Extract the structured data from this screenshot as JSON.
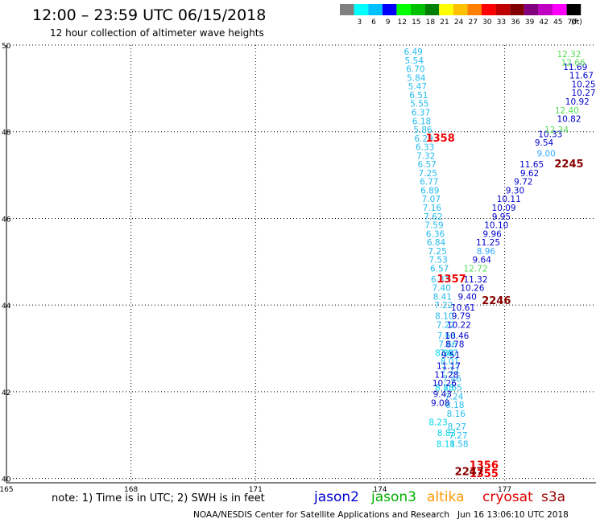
{
  "header": {
    "title": "12:00 – 23:59 UTC 06/15/2018",
    "subtitle": "12 hour collection of altimeter wave heights"
  },
  "color_scale": {
    "unit": "(ft)",
    "bins": [
      {
        "label": "",
        "color": "#808080"
      },
      {
        "label": "3",
        "color": "#00ffff"
      },
      {
        "label": "6",
        "color": "#00c0ff"
      },
      {
        "label": "9",
        "color": "#0000ff"
      },
      {
        "label": "12",
        "color": "#00ff00"
      },
      {
        "label": "15",
        "color": "#00c000"
      },
      {
        "label": "18",
        "color": "#008000"
      },
      {
        "label": "21",
        "color": "#ffff00"
      },
      {
        "label": "24",
        "color": "#ffc000"
      },
      {
        "label": "27",
        "color": "#ff8000"
      },
      {
        "label": "30",
        "color": "#ff0000"
      },
      {
        "label": "33",
        "color": "#c00000"
      },
      {
        "label": "36",
        "color": "#800000"
      },
      {
        "label": "39",
        "color": "#800080"
      },
      {
        "label": "42",
        "color": "#c000c0"
      },
      {
        "label": "45",
        "color": "#ff00ff"
      },
      {
        "label": "70",
        "color": "#000000"
      }
    ]
  },
  "note": "note: 1) Time is in UTC; 2) SWH is in feet",
  "legend": [
    {
      "label": "jason2",
      "color": "#0000cc"
    },
    {
      "label": "jason3",
      "color": "#00b000"
    },
    {
      "label": "altika",
      "color": "#ff9900"
    },
    {
      "label": "cryosat",
      "color": "#dd0000"
    },
    {
      "label": "s3a",
      "color": "#990000"
    }
  ],
  "footer": "NOAA/NESDIS Center for Satellite Applications and Research   Jun 16 13:06:10 UTC 2018",
  "chart_data": {
    "type": "scatter",
    "x_ticks": [
      "165",
      "168",
      "171",
      "174",
      "177"
    ],
    "y_ticks": [
      "40",
      "42",
      "44",
      "46",
      "48",
      "50"
    ],
    "xlim": [
      165,
      179.2
    ],
    "ylim": [
      39.9,
      50
    ],
    "grid": true,
    "tracks": [
      {
        "color": "#22bbee",
        "points": [
          {
            "x": 174.8,
            "y": 49.85,
            "t": "6.49"
          },
          {
            "x": 174.82,
            "y": 49.65,
            "t": "5.54"
          },
          {
            "x": 174.85,
            "y": 49.45,
            "t": "6.70"
          },
          {
            "x": 174.87,
            "y": 49.25,
            "t": "5.84"
          },
          {
            "x": 174.9,
            "y": 49.05,
            "t": "5.47"
          },
          {
            "x": 174.93,
            "y": 48.85,
            "t": "6.51"
          },
          {
            "x": 174.95,
            "y": 48.65,
            "t": "5.55"
          },
          {
            "x": 174.98,
            "y": 48.45,
            "t": "6.37"
          },
          {
            "x": 175.0,
            "y": 48.25,
            "t": "6.18"
          },
          {
            "x": 175.03,
            "y": 48.05,
            "t": "5.86"
          },
          {
            "x": 175.05,
            "y": 47.85,
            "t": "6.29"
          },
          {
            "x": 175.08,
            "y": 47.65,
            "t": "6.33"
          },
          {
            "x": 175.1,
            "y": 47.45,
            "t": "7.32"
          },
          {
            "x": 175.13,
            "y": 47.25,
            "t": "6.57"
          },
          {
            "x": 175.15,
            "y": 47.05,
            "t": "7.25"
          },
          {
            "x": 175.18,
            "y": 46.85,
            "t": "6.77"
          },
          {
            "x": 175.2,
            "y": 46.65,
            "t": "6.89"
          },
          {
            "x": 175.23,
            "y": 46.45,
            "t": "7.07"
          },
          {
            "x": 175.25,
            "y": 46.25,
            "t": "7.16"
          },
          {
            "x": 175.28,
            "y": 46.05,
            "t": "7.62"
          },
          {
            "x": 175.3,
            "y": 45.85,
            "t": "7.59"
          },
          {
            "x": 175.33,
            "y": 45.65,
            "t": "6.36"
          },
          {
            "x": 175.35,
            "y": 45.45,
            "t": "6.84"
          },
          {
            "x": 175.38,
            "y": 45.25,
            "t": "7.25"
          },
          {
            "x": 175.4,
            "y": 45.05,
            "t": "7.53"
          },
          {
            "x": 175.43,
            "y": 44.85,
            "t": "6.57"
          },
          {
            "x": 175.45,
            "y": 44.6,
            "t": "6.33"
          },
          {
            "x": 175.48,
            "y": 44.4,
            "t": "7.40"
          },
          {
            "x": 175.5,
            "y": 44.2,
            "t": "8.41"
          },
          {
            "x": 175.53,
            "y": 44.0,
            "t": "7.22"
          },
          {
            "x": 175.55,
            "y": 43.75,
            "t": "8.10"
          },
          {
            "x": 175.58,
            "y": 43.55,
            "t": "7.22"
          },
          {
            "x": 175.6,
            "y": 43.3,
            "t": "7.68"
          },
          {
            "x": 175.63,
            "y": 43.1,
            "t": "7.66"
          },
          {
            "x": 175.65,
            "y": 42.9,
            "t": "7.67"
          },
          {
            "x": 175.68,
            "y": 42.7,
            "t": "8.01"
          },
          {
            "x": 175.7,
            "y": 42.5,
            "t": "7.11"
          },
          {
            "x": 175.73,
            "y": 42.3,
            "t": "7.46"
          },
          {
            "x": 175.75,
            "y": 42.1,
            "t": "7.65"
          },
          {
            "x": 175.78,
            "y": 41.9,
            "t": "7.24"
          },
          {
            "x": 175.8,
            "y": 41.7,
            "t": "8.18"
          },
          {
            "x": 175.83,
            "y": 41.5,
            "t": "8.16"
          },
          {
            "x": 175.85,
            "y": 41.2,
            "t": "8.27"
          },
          {
            "x": 175.88,
            "y": 41.0,
            "t": "7.27"
          },
          {
            "x": 175.9,
            "y": 40.8,
            "t": "8.58"
          }
        ]
      },
      {
        "color": "#00d8e8",
        "points": [
          {
            "x": 175.55,
            "y": 42.9,
            "t": "8.88"
          },
          {
            "x": 175.55,
            "y": 42.1,
            "t": "8.88"
          },
          {
            "x": 175.6,
            "y": 41.05,
            "t": "8.83"
          },
          {
            "x": 175.58,
            "y": 40.8,
            "t": "8.11"
          },
          {
            "x": 175.4,
            "y": 41.3,
            "t": "8.23"
          }
        ]
      },
      {
        "color": "#0000cc",
        "points": [
          {
            "x": 178.7,
            "y": 49.5,
            "t": "11.69"
          },
          {
            "x": 178.85,
            "y": 49.3,
            "t": "11.67"
          },
          {
            "x": 178.9,
            "y": 49.1,
            "t": "10.25"
          },
          {
            "x": 178.9,
            "y": 48.9,
            "t": "10.27"
          },
          {
            "x": 178.75,
            "y": 48.7,
            "t": "10.92"
          },
          {
            "x": 178.55,
            "y": 48.3,
            "t": "10.82"
          },
          {
            "x": 178.1,
            "y": 47.95,
            "t": "10.33"
          },
          {
            "x": 177.95,
            "y": 47.75,
            "t": "9.54"
          },
          {
            "x": 177.65,
            "y": 47.25,
            "t": "11.65"
          },
          {
            "x": 177.6,
            "y": 47.05,
            "t": "9.62"
          },
          {
            "x": 177.45,
            "y": 46.85,
            "t": "9.72"
          },
          {
            "x": 177.25,
            "y": 46.65,
            "t": "9.30"
          },
          {
            "x": 177.1,
            "y": 46.45,
            "t": "10.11"
          },
          {
            "x": 176.98,
            "y": 46.25,
            "t": "10.09"
          },
          {
            "x": 176.92,
            "y": 46.05,
            "t": "9.95"
          },
          {
            "x": 176.8,
            "y": 45.85,
            "t": "10.10"
          },
          {
            "x": 176.7,
            "y": 45.65,
            "t": "9.96"
          },
          {
            "x": 176.6,
            "y": 45.45,
            "t": "11.25"
          },
          {
            "x": 176.45,
            "y": 45.05,
            "t": "9.64"
          },
          {
            "x": 176.3,
            "y": 44.6,
            "t": "11.32"
          },
          {
            "x": 176.22,
            "y": 44.4,
            "t": "10.26"
          },
          {
            "x": 176.1,
            "y": 44.2,
            "t": "9.40"
          },
          {
            "x": 176.0,
            "y": 43.95,
            "t": "10.61"
          },
          {
            "x": 175.95,
            "y": 43.75,
            "t": "9.79"
          },
          {
            "x": 175.9,
            "y": 43.55,
            "t": "10.22"
          },
          {
            "x": 175.85,
            "y": 43.3,
            "t": "10.46"
          },
          {
            "x": 175.8,
            "y": 43.1,
            "t": "8.78"
          },
          {
            "x": 175.7,
            "y": 42.85,
            "t": "9.51"
          },
          {
            "x": 175.65,
            "y": 42.6,
            "t": "11.17"
          },
          {
            "x": 175.6,
            "y": 42.4,
            "t": "11.28"
          },
          {
            "x": 175.55,
            "y": 42.2,
            "t": "10.26"
          },
          {
            "x": 175.5,
            "y": 41.95,
            "t": "9.43"
          },
          {
            "x": 175.45,
            "y": 41.75,
            "t": "9.08"
          }
        ]
      },
      {
        "color": "#55dd55",
        "points": [
          {
            "x": 178.55,
            "y": 49.8,
            "t": "12.32"
          },
          {
            "x": 178.65,
            "y": 49.6,
            "t": "12.66"
          },
          {
            "x": 178.5,
            "y": 48.5,
            "t": "12.40"
          },
          {
            "x": 178.25,
            "y": 48.05,
            "t": "12.34"
          },
          {
            "x": 176.3,
            "y": 44.85,
            "t": "12.72"
          }
        ]
      },
      {
        "color": "#33aaff",
        "points": [
          {
            "x": 178.0,
            "y": 47.5,
            "t": "9.00"
          },
          {
            "x": 176.55,
            "y": 45.25,
            "t": "8.96"
          }
        ]
      },
      {
        "color": "#ee0000",
        "bold": true,
        "points": [
          {
            "x": 175.45,
            "y": 47.85,
            "t": "1358"
          },
          {
            "x": 175.72,
            "y": 44.6,
            "t": "1357"
          },
          {
            "x": 176.5,
            "y": 40.3,
            "t": "1356"
          },
          {
            "x": 176.5,
            "y": 40.1,
            "t": "1355"
          }
        ]
      },
      {
        "color": "#880000",
        "bold": true,
        "points": [
          {
            "x": 178.55,
            "y": 47.25,
            "t": "2245"
          },
          {
            "x": 176.8,
            "y": 44.1,
            "t": "2246"
          },
          {
            "x": 176.15,
            "y": 40.15,
            "t": "2247"
          }
        ]
      }
    ]
  }
}
